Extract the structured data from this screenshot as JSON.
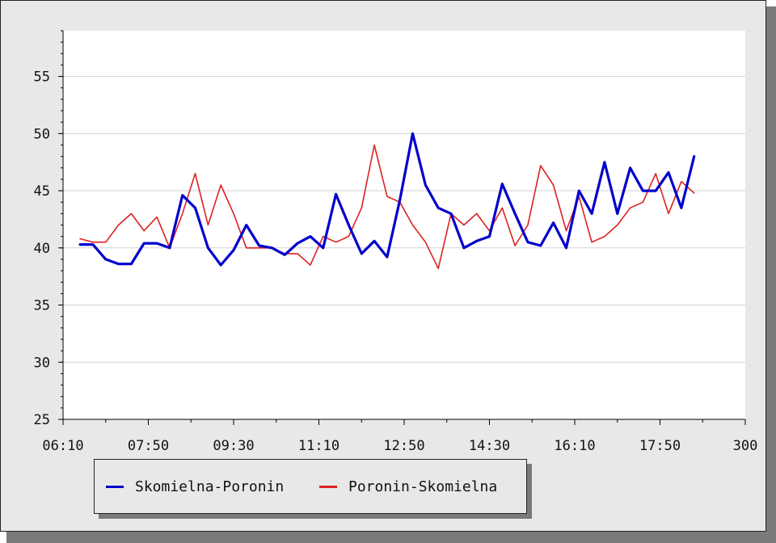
{
  "chart_data": {
    "type": "line",
    "y_ticks": [
      25,
      30,
      35,
      40,
      45,
      50,
      55
    ],
    "ylim": [
      25,
      59
    ],
    "x_tick_labels": [
      "06:10",
      "07:50",
      "09:30",
      "11:10",
      "12:50",
      "14:30",
      "16:10",
      "17:50",
      "300"
    ],
    "x": [
      "06:30",
      "06:45",
      "07:00",
      "07:15",
      "07:30",
      "07:45",
      "08:00",
      "08:15",
      "08:30",
      "08:45",
      "09:00",
      "09:15",
      "09:30",
      "09:45",
      "10:00",
      "10:15",
      "10:30",
      "10:45",
      "11:00",
      "11:15",
      "11:30",
      "11:45",
      "12:00",
      "12:15",
      "12:30",
      "12:45",
      "13:00",
      "13:15",
      "13:30",
      "13:45",
      "14:00",
      "14:15",
      "14:30",
      "14:45",
      "15:00",
      "15:15",
      "15:30",
      "15:45",
      "16:00",
      "16:15",
      "16:30",
      "16:45",
      "17:00",
      "17:15",
      "17:30",
      "17:45",
      "18:00",
      "18:15",
      "18:30"
    ],
    "series": [
      {
        "name": "Skomielna-Poronin",
        "color": "#0000cc",
        "values": [
          40.3,
          40.3,
          39.0,
          38.6,
          38.6,
          40.4,
          40.4,
          40.0,
          44.6,
          43.5,
          40.0,
          38.5,
          39.8,
          42.0,
          40.2,
          40.0,
          39.4,
          40.4,
          41.0,
          40.0,
          44.7,
          42.0,
          39.5,
          40.6,
          39.2,
          44.2,
          50.0,
          45.5,
          43.5,
          43.0,
          40.0,
          40.6,
          41.0,
          45.6,
          43.0,
          40.5,
          40.2,
          42.2,
          40.0,
          45.0,
          43.0,
          47.5,
          43.0,
          47.0,
          45.0,
          45.0,
          46.6,
          43.5,
          48.0
        ]
      },
      {
        "name": "Poronin-Skomielna",
        "color": "#dd2222",
        "values": [
          40.8,
          40.5,
          40.5,
          42.0,
          43.0,
          41.5,
          42.7,
          40.0,
          43.0,
          46.5,
          42.0,
          45.5,
          43.0,
          40.0,
          40.0,
          40.0,
          39.5,
          39.5,
          38.5,
          41.0,
          40.5,
          41.0,
          43.5,
          49.0,
          44.5,
          44.0,
          42.0,
          40.5,
          38.2,
          43.0,
          42.0,
          43.0,
          41.5,
          43.5,
          40.2,
          42.0,
          47.2,
          45.5,
          41.5,
          44.5,
          40.5,
          41.0,
          42.0,
          43.5,
          44.0,
          46.5,
          43.0,
          45.8,
          44.8
        ]
      }
    ]
  }
}
